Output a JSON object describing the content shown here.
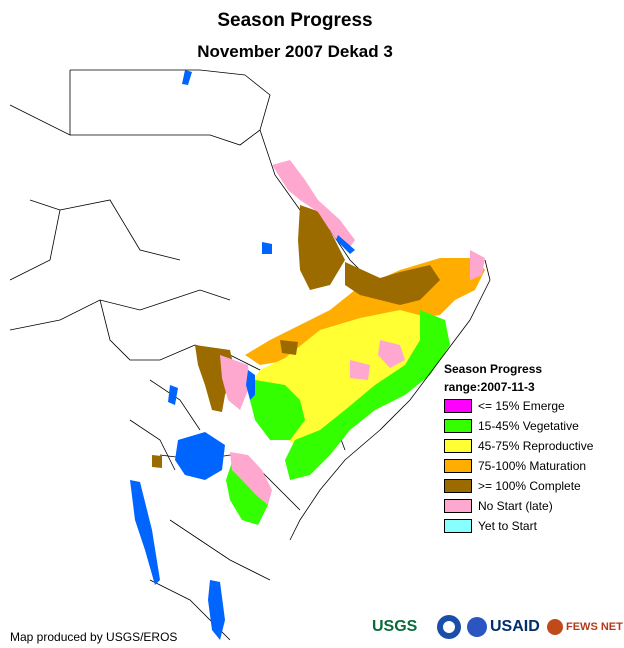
{
  "header": {
    "title": "Season Progress",
    "subtitle": "November 2007 Dekad 3"
  },
  "legend": {
    "title": "Season Progress",
    "range": "range:2007-11-3",
    "items": [
      {
        "label": "<= 15% Emerge",
        "color": "#ff00ff"
      },
      {
        "label": "15-45% Vegetative",
        "color": "#33ff00"
      },
      {
        "label": "45-75% Reproductive",
        "color": "#ffff33"
      },
      {
        "label": "75-100% Maturation",
        "color": "#ffad00"
      },
      {
        "label": ">= 100% Complete",
        "color": "#9b6b00"
      },
      {
        "label": "No Start (late)",
        "color": "#ffa8cf"
      },
      {
        "label": "Yet to Start",
        "color": "#88ffff"
      }
    ]
  },
  "credit": "Map produced by USGS/EROS",
  "logos": {
    "usgs": "USGS",
    "usaid": "USAID",
    "fews": "FEWS NET"
  },
  "colors": {
    "water": "#0064ff",
    "border": "#000000"
  }
}
